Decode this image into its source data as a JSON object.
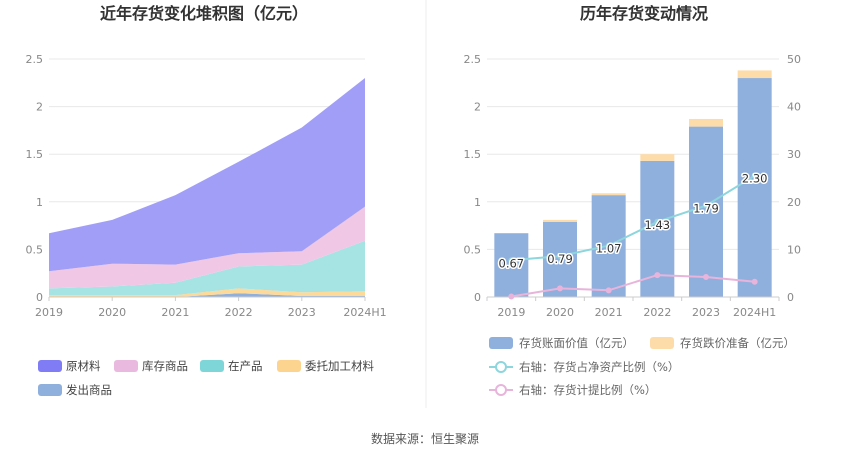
{
  "source_label": "数据来源：恒生聚源",
  "chart_data": [
    {
      "type": "area",
      "stacked": true,
      "title": "近年存货变化堆积图（亿元）",
      "categories": [
        "2019",
        "2020",
        "2021",
        "2022",
        "2023",
        "2024H1"
      ],
      "ylim": [
        0,
        2.5
      ],
      "yticks": [
        "0",
        "0.5",
        "1",
        "1.5",
        "2",
        "2.5"
      ],
      "grid": true,
      "legend_position": "bottom",
      "series": [
        {
          "name": "发出商品",
          "color": "#8fb0dc",
          "values": [
            0.0,
            0.0,
            0.0,
            0.04,
            0.01,
            0.01
          ]
        },
        {
          "name": "委托加工材料",
          "color": "#fdd99a",
          "values": [
            0.02,
            0.02,
            0.02,
            0.05,
            0.04,
            0.05
          ]
        },
        {
          "name": "在产品",
          "color": "#a6e3e3",
          "values": [
            0.07,
            0.09,
            0.13,
            0.23,
            0.29,
            0.53
          ]
        },
        {
          "name": "库存商品",
          "color": "#f0c8e6",
          "values": [
            0.18,
            0.24,
            0.19,
            0.14,
            0.14,
            0.36
          ]
        },
        {
          "name": "原材料",
          "color": "#a19ef8",
          "values": [
            0.4,
            0.46,
            0.73,
            0.96,
            1.3,
            1.35
          ]
        }
      ],
      "legend": [
        {
          "name": "原材料",
          "color": "#7f7cf5"
        },
        {
          "name": "库存商品",
          "color": "#e9b9df"
        },
        {
          "name": "在产品",
          "color": "#7fd6d9"
        },
        {
          "name": "委托加工材料",
          "color": "#fdd48f"
        },
        {
          "name": "发出商品",
          "color": "#8fb0dc"
        }
      ]
    },
    {
      "type": "bar",
      "stacked": true,
      "title": "历年存货变动情况",
      "categories": [
        "2019",
        "2020",
        "2021",
        "2022",
        "2023",
        "2024H1"
      ],
      "ylim_left": [
        0,
        2.5
      ],
      "yticks_left": [
        "0",
        "0.5",
        "1",
        "1.5",
        "2",
        "2.5"
      ],
      "ylim_right": [
        0,
        50
      ],
      "yticks_right": [
        "0",
        "10",
        "20",
        "30",
        "40",
        "50"
      ],
      "grid": true,
      "legend_position": "bottom",
      "series": [
        {
          "name": "存货账面价值（亿元）",
          "color": "#8fb0dc",
          "axis": "left",
          "values": [
            0.67,
            0.79,
            1.07,
            1.43,
            1.79,
            2.3
          ],
          "labels": [
            "0.67",
            "0.79",
            "1.07",
            "1.43",
            "1.79",
            "2.30"
          ]
        },
        {
          "name": "存货跌价准备（亿元）",
          "color": "#fddcaa",
          "axis": "left",
          "values": [
            0.0,
            0.02,
            0.02,
            0.07,
            0.08,
            0.08
          ]
        },
        {
          "name": "右轴：存货占净资产比例（%）",
          "color": "#8dd6dd",
          "type": "line",
          "axis": "right",
          "values": [
            7.7,
            8.6,
            10.8,
            15.8,
            19.2,
            25.5
          ]
        },
        {
          "name": "右轴：存货计提比例（%）",
          "color": "#e8b4dc",
          "type": "line",
          "axis": "right",
          "values": [
            0.1,
            1.8,
            1.4,
            4.6,
            4.2,
            3.2
          ]
        }
      ]
    }
  ]
}
